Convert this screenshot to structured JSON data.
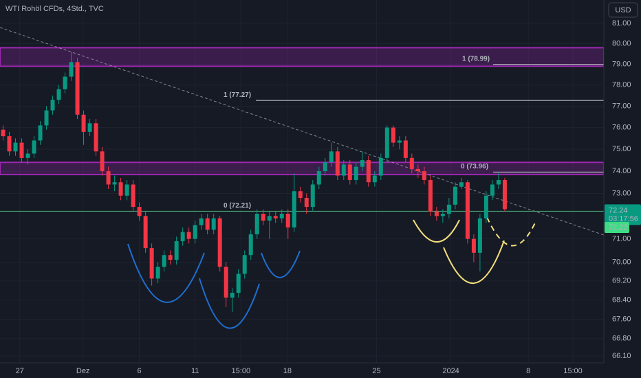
{
  "chart_data": {
    "type": "candlestick",
    "title": "WTI Rohöl CFDs, 4Std., TVC",
    "currency": "USD",
    "up_color": "#089981",
    "down_color": "#f23645",
    "log_scale": true,
    "grid": true,
    "ylim": [
      65.82,
      82.16
    ],
    "yticks": [
      {
        "value": 81,
        "label": "81.00"
      },
      {
        "value": 80,
        "label": "80.00"
      },
      {
        "value": 79,
        "label": "79.00"
      },
      {
        "value": 78,
        "label": "78.00"
      },
      {
        "value": 77,
        "label": "77.00"
      },
      {
        "value": 76,
        "label": "76.00"
      },
      {
        "value": 75,
        "label": "75.00"
      },
      {
        "value": 74,
        "label": "74.00"
      },
      {
        "value": 73,
        "label": "73.00"
      },
      {
        "value": 71,
        "label": "71.00"
      },
      {
        "value": 70,
        "label": "70.00"
      },
      {
        "value": 69.2,
        "label": "69.20"
      },
      {
        "value": 68.4,
        "label": "68.40"
      },
      {
        "value": 67.6,
        "label": "67.60"
      },
      {
        "value": 66.8,
        "label": "66.80"
      },
      {
        "value": 66.1,
        "label": "66.10"
      }
    ],
    "xlim": [
      -0.5,
      97
    ],
    "xticks": [
      {
        "value": 2.7,
        "label": "27"
      },
      {
        "value": 12.9,
        "label": "Dez"
      },
      {
        "value": 22,
        "label": "6"
      },
      {
        "value": 31,
        "label": "11"
      },
      {
        "value": 38.4,
        "label": "15:00"
      },
      {
        "value": 45.9,
        "label": "18"
      },
      {
        "value": 60.3,
        "label": "25"
      },
      {
        "value": 72.3,
        "label": "2024"
      },
      {
        "value": 84.8,
        "label": "8"
      },
      {
        "value": 92,
        "label": "15:00"
      }
    ],
    "open": [
      75.9,
      75.6,
      74.9,
      75.3,
      74.6,
      74.8,
      75.4,
      76.1,
      76.8,
      77.3,
      77.8,
      78.4,
      79.1,
      76.6,
      75.8,
      76.2,
      74.9,
      74.0,
      73.4,
      73.5,
      72.9,
      73.4,
      72.4,
      72.0,
      70.6,
      69.3,
      69.8,
      70.3,
      70.1,
      70.9,
      71.3,
      71.0,
      71.6,
      71.9,
      71.4,
      71.9,
      69.8,
      68.5,
      68.7,
      69.5,
      70.3,
      71.2,
      72.1,
      71.8,
      72.0,
      71.9,
      72.1,
      71.5,
      73.1,
      72.8,
      72.4,
      73.4,
      74.0,
      74.4,
      74.9,
      73.8,
      74.3,
      73.6,
      74.2,
      74.5,
      73.5,
      73.8,
      74.6,
      76.0,
      75.3,
      75.4,
      74.6,
      74.1,
      74.0,
      73.6,
      72.2,
      72.0,
      72.1,
      72.5,
      73.3,
      73.5,
      71.0,
      70.4,
      71.9,
      72.9,
      73.4,
      73.6
    ],
    "close": [
      75.6,
      74.9,
      75.3,
      74.6,
      74.8,
      75.4,
      76.1,
      76.8,
      77.3,
      77.8,
      78.4,
      79.1,
      76.6,
      75.8,
      76.2,
      74.9,
      74.0,
      73.4,
      73.5,
      72.9,
      73.4,
      72.4,
      72.0,
      70.6,
      69.3,
      69.8,
      70.3,
      70.1,
      70.9,
      71.3,
      71.0,
      71.6,
      71.9,
      71.4,
      71.9,
      69.8,
      68.5,
      68.7,
      69.5,
      70.3,
      71.2,
      72.1,
      71.8,
      72.0,
      71.9,
      72.1,
      71.5,
      73.1,
      72.8,
      72.4,
      73.4,
      74.0,
      74.4,
      74.9,
      73.8,
      74.3,
      73.6,
      74.2,
      74.5,
      73.5,
      73.8,
      74.6,
      76.0,
      75.3,
      75.4,
      74.6,
      74.1,
      74.0,
      73.6,
      72.2,
      72.0,
      72.1,
      72.5,
      73.3,
      73.5,
      71.0,
      70.4,
      71.9,
      72.9,
      73.4,
      73.6,
      72.3
    ],
    "high": [
      76.1,
      75.8,
      75.5,
      75.5,
      75.0,
      75.6,
      76.3,
      77.0,
      77.5,
      78.0,
      78.6,
      79.6,
      79.3,
      76.8,
      76.4,
      76.4,
      75.1,
      74.2,
      73.8,
      73.7,
      73.6,
      73.6,
      72.6,
      72.2,
      70.8,
      70.0,
      70.5,
      70.5,
      71.1,
      71.5,
      71.5,
      71.8,
      72.1,
      72.1,
      72.1,
      72.0,
      70.0,
      68.9,
      69.7,
      70.5,
      71.4,
      72.3,
      72.3,
      72.2,
      72.2,
      72.3,
      72.3,
      73.9,
      73.3,
      73.0,
      73.6,
      74.2,
      74.6,
      75.3,
      75.1,
      74.5,
      74.5,
      74.4,
      74.9,
      74.7,
      74.0,
      74.8,
      76.1,
      76.1,
      75.6,
      75.6,
      74.8,
      74.3,
      74.2,
      73.8,
      72.4,
      72.3,
      72.8,
      73.5,
      73.7,
      73.6,
      71.2,
      72.1,
      73.1,
      73.6,
      73.9,
      73.7
    ],
    "low": [
      75.4,
      74.7,
      74.7,
      74.4,
      74.3,
      74.6,
      75.2,
      75.9,
      76.6,
      77.1,
      77.6,
      78.2,
      76.4,
      75.2,
      75.6,
      74.7,
      73.8,
      73.2,
      73.1,
      72.7,
      72.7,
      72.2,
      71.8,
      70.4,
      69.0,
      69.1,
      69.6,
      69.9,
      69.9,
      70.7,
      70.8,
      70.8,
      71.4,
      71.2,
      71.2,
      69.6,
      68.1,
      67.9,
      68.5,
      69.3,
      70.1,
      71.0,
      71.6,
      71.0,
      71.7,
      71.7,
      71.0,
      71.3,
      72.6,
      72.1,
      72.2,
      73.2,
      73.8,
      74.2,
      73.6,
      73.6,
      73.4,
      73.4,
      74.0,
      73.3,
      73.3,
      73.6,
      74.4,
      75.1,
      75.0,
      74.4,
      73.9,
      73.7,
      73.4,
      72.0,
      71.8,
      71.7,
      71.9,
      72.3,
      73.2,
      70.8,
      70.0,
      69.6,
      71.7,
      72.7,
      73.2,
      72.2
    ],
    "zones": [
      {
        "top": 79.8,
        "bottom": 78.9
      },
      {
        "top": 74.4,
        "bottom": 73.85
      }
    ],
    "levels": [
      {
        "label": "0 (72.21)",
        "value": 72.21
      },
      {
        "label": "1 (78.99)",
        "value": 78.99
      },
      {
        "label": "1 (77.27)",
        "value": 77.27
      },
      {
        "label": "0 (73.96)",
        "value": 73.96
      }
    ],
    "last_price": {
      "value": 72.24,
      "label": "72.24"
    },
    "countdown": "03:17:56",
    "second_price": {
      "value": 72.22,
      "label": "72.22"
    }
  }
}
